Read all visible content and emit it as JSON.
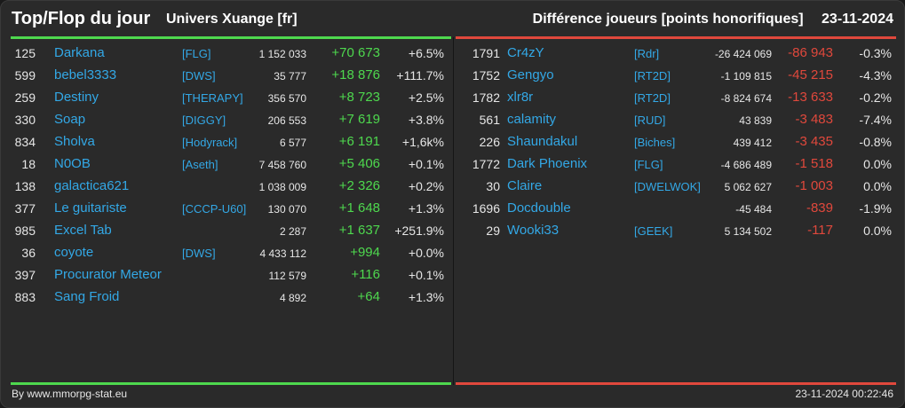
{
  "header": {
    "title": "Top/Flop du jour",
    "subtitle": "Univers Xuange [fr]",
    "right_label": "Différence joueurs [points honorifiques]",
    "date": "23-11-2024"
  },
  "top": [
    {
      "rank": "125",
      "name": "Darkana",
      "guild": "[FLG]",
      "total": "1 152 033",
      "diff": "+70 673",
      "pct": "+6.5%"
    },
    {
      "rank": "599",
      "name": "bebel3333",
      "guild": "[DWS]",
      "total": "35 777",
      "diff": "+18 876",
      "pct": "+111.7%"
    },
    {
      "rank": "259",
      "name": "Destiny",
      "guild": "[THERAPY]",
      "total": "356 570",
      "diff": "+8 723",
      "pct": "+2.5%"
    },
    {
      "rank": "330",
      "name": "Soap",
      "guild": "[DIGGY]",
      "total": "206 553",
      "diff": "+7 619",
      "pct": "+3.8%"
    },
    {
      "rank": "834",
      "name": "Sholva",
      "guild": "[Hodyrack]",
      "total": "6 577",
      "diff": "+6 191",
      "pct": "+1,6k%"
    },
    {
      "rank": "18",
      "name": "N0OB",
      "guild": "[Aseth]",
      "total": "7 458 760",
      "diff": "+5 406",
      "pct": "+0.1%"
    },
    {
      "rank": "138",
      "name": "galactica621",
      "guild": "",
      "total": "1 038 009",
      "diff": "+2 326",
      "pct": "+0.2%"
    },
    {
      "rank": "377",
      "name": "Le guitariste",
      "guild": "[CCCP-U60]",
      "total": "130 070",
      "diff": "+1 648",
      "pct": "+1.3%"
    },
    {
      "rank": "985",
      "name": "Excel Tab",
      "guild": "",
      "total": "2 287",
      "diff": "+1 637",
      "pct": "+251.9%"
    },
    {
      "rank": "36",
      "name": "coyote",
      "guild": "[DWS]",
      "total": "4 433 112",
      "diff": "+994",
      "pct": "+0.0%"
    },
    {
      "rank": "397",
      "name": "Procurator Meteor",
      "guild": "",
      "total": "112 579",
      "diff": "+116",
      "pct": "+0.1%"
    },
    {
      "rank": "883",
      "name": "Sang Froid",
      "guild": "",
      "total": "4 892",
      "diff": "+64",
      "pct": "+1.3%"
    }
  ],
  "flop": [
    {
      "rank": "1791",
      "name": "Cr4zY",
      "guild": "[Rdr]",
      "total": "-26 424 069",
      "diff": "-86 943",
      "pct": "-0.3%"
    },
    {
      "rank": "1752",
      "name": "Gengyo",
      "guild": "[RT2D]",
      "total": "-1 109 815",
      "diff": "-45 215",
      "pct": "-4.3%"
    },
    {
      "rank": "1782",
      "name": "xlr8r",
      "guild": "[RT2D]",
      "total": "-8 824 674",
      "diff": "-13 633",
      "pct": "-0.2%"
    },
    {
      "rank": "561",
      "name": "calamity",
      "guild": "[RUD]",
      "total": "43 839",
      "diff": "-3 483",
      "pct": "-7.4%"
    },
    {
      "rank": "226",
      "name": "Shaundakul",
      "guild": "[Biches]",
      "total": "439 412",
      "diff": "-3 435",
      "pct": "-0.8%"
    },
    {
      "rank": "1772",
      "name": "Dark Phoenix",
      "guild": "[FLG]",
      "total": "-4 686 489",
      "diff": "-1 518",
      "pct": "0.0%"
    },
    {
      "rank": "30",
      "name": "Claire",
      "guild": "[DWELWOK]",
      "total": "5 062 627",
      "diff": "-1 003",
      "pct": "0.0%"
    },
    {
      "rank": "1696",
      "name": "Docdouble",
      "guild": "",
      "total": "-45 484",
      "diff": "-839",
      "pct": "-1.9%"
    },
    {
      "rank": "29",
      "name": "Wooki33",
      "guild": "[GEEK]",
      "total": "5 134 502",
      "diff": "-117",
      "pct": "0.0%"
    }
  ],
  "footer": {
    "credit": "By www.mmorpg-stat.eu",
    "timestamp": "23-11-2024 00:22:46"
  },
  "colors": {
    "accent_top": "#4ed84e",
    "accent_flop": "#e0483c",
    "link": "#33a8e6",
    "background": "#2a2a2a"
  }
}
